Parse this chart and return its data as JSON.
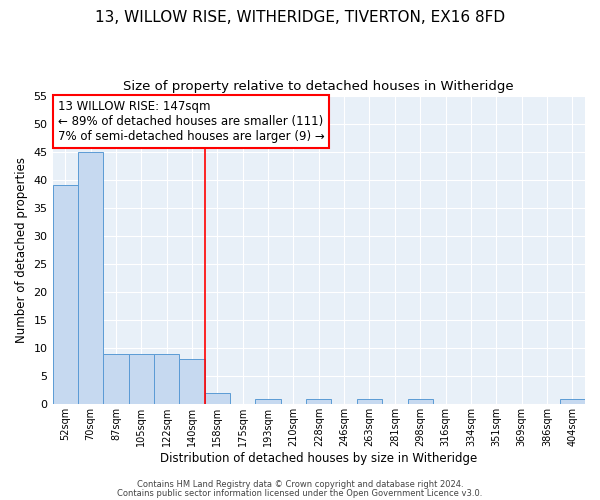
{
  "title": "13, WILLOW RISE, WITHERIDGE, TIVERTON, EX16 8FD",
  "subtitle": "Size of property relative to detached houses in Witheridge",
  "xlabel": "Distribution of detached houses by size in Witheridge",
  "ylabel": "Number of detached properties",
  "categories": [
    "52sqm",
    "70sqm",
    "87sqm",
    "105sqm",
    "122sqm",
    "140sqm",
    "158sqm",
    "175sqm",
    "193sqm",
    "210sqm",
    "228sqm",
    "246sqm",
    "263sqm",
    "281sqm",
    "298sqm",
    "316sqm",
    "334sqm",
    "351sqm",
    "369sqm",
    "386sqm",
    "404sqm"
  ],
  "values": [
    39,
    45,
    9,
    9,
    9,
    8,
    2,
    0,
    1,
    0,
    1,
    0,
    1,
    0,
    1,
    0,
    0,
    0,
    0,
    0,
    1
  ],
  "bar_color": "#c6d9f0",
  "bar_edge_color": "#5b9bd5",
  "red_line_x": 5.5,
  "annotation_line1": "13 WILLOW RISE: 147sqm",
  "annotation_line2": "← 89% of detached houses are smaller (111)",
  "annotation_line3": "7% of semi-detached houses are larger (9) →",
  "ylim": [
    0,
    55
  ],
  "yticks": [
    0,
    5,
    10,
    15,
    20,
    25,
    30,
    35,
    40,
    45,
    50,
    55
  ],
  "background_color": "#e8f0f8",
  "footer_line1": "Contains HM Land Registry data © Crown copyright and database right 2024.",
  "footer_line2": "Contains public sector information licensed under the Open Government Licence v3.0.",
  "title_fontsize": 11,
  "subtitle_fontsize": 9.5,
  "xlabel_fontsize": 8.5,
  "ylabel_fontsize": 8.5,
  "annotation_fontsize": 8.5
}
